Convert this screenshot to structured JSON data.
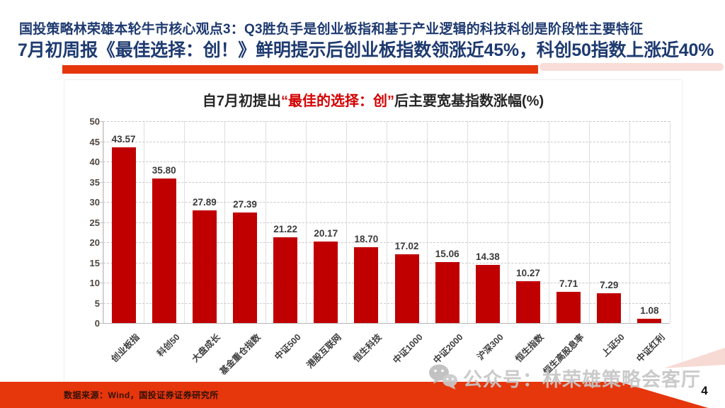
{
  "header": {
    "line1": "国投策略林荣雄本轮牛市核心观点3：Q3胜负手是创业板指和基于产业逻辑的科技科创是阶段性主要特征",
    "line2": "7月初周报《最佳选择：创！》鲜明提示后创业板指数领涨近45%，科创50指数上涨近40%"
  },
  "chart_data": {
    "type": "bar",
    "title": "自7月初提出“最佳的选择：创”后主要宽基指数涨幅(%)",
    "title_parts": {
      "prefix": "自7月初提出",
      "highlight": "“最佳的选择：创”",
      "suffix": "后主要宽基指数涨幅(%)"
    },
    "categories": [
      "创业板指",
      "科创50",
      "大盘成长",
      "基金重仓指数",
      "中证500",
      "港股互联网",
      "恒生科技",
      "中证1000",
      "中证2000",
      "沪深300",
      "恒生指数",
      "恒生高股息率",
      "上证50",
      "中证红利"
    ],
    "values": [
      43.57,
      35.8,
      27.89,
      27.39,
      21.22,
      20.17,
      18.7,
      17.02,
      15.06,
      14.38,
      10.27,
      7.71,
      7.29,
      1.08
    ],
    "xlabel": "",
    "ylabel": "",
    "ylim": [
      0,
      50
    ],
    "ytick_step": 5,
    "grid": true,
    "legend": "none",
    "bar_color": "#c00000",
    "value_labels": [
      "43.57",
      "35.80",
      "27.89",
      "27.39",
      "21.22",
      "20.17",
      "18.70",
      "17.02",
      "15.06",
      "14.38",
      "10.27",
      "7.71",
      "7.29",
      "1.08"
    ]
  },
  "footer": {
    "source": "数据来源：Wind，国投证券证券研究所",
    "page_number": "4"
  },
  "watermark": {
    "icon": "wechat-icon",
    "text": "公众号：林荣雄策略会客厅"
  },
  "colors": {
    "header_navy": "#1e3a70",
    "accent_red": "#e6360c",
    "bar_red": "#c00000",
    "title_highlight_red": "#d30000",
    "watermark_gray": "#c6c6c6"
  }
}
